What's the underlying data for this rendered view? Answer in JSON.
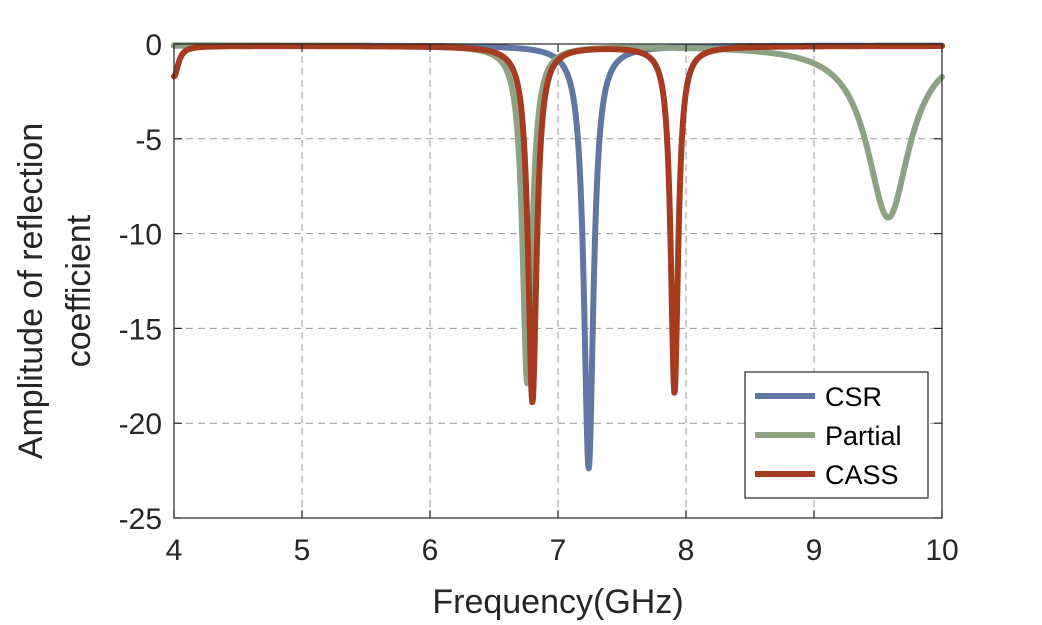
{
  "chart_data": {
    "type": "line",
    "title": "",
    "xlabel": "Frequency(GHz)",
    "ylabel_lines": [
      "Amplitude of reflection",
      "coefficient"
    ],
    "xlim": [
      4,
      10
    ],
    "ylim": [
      -25,
      0
    ],
    "xticks": [
      4,
      5,
      6,
      7,
      8,
      9,
      10
    ],
    "yticks": [
      0,
      -5,
      -10,
      -15,
      -20,
      -25
    ],
    "x_tick_labels": [
      "4",
      "5",
      "6",
      "7",
      "8",
      "9",
      "10"
    ],
    "y_tick_labels": [
      "0",
      "-5",
      "-10",
      "-15",
      "-20",
      "-25"
    ],
    "grid": true,
    "legend_position": "bottom-right",
    "series": [
      {
        "name": "CSR",
        "color": "#5E77A3",
        "baseline": -0.08,
        "resonances": [
          {
            "f0": 7.24,
            "depth": 22.3,
            "width": 0.045
          }
        ]
      },
      {
        "name": "Partial",
        "color": "#8DA283",
        "baseline": -0.05,
        "resonances": [
          {
            "f0": 6.76,
            "depth": 17.8,
            "width": 0.045
          },
          {
            "f0": 9.58,
            "depth": 9.1,
            "width": 0.2
          }
        ]
      },
      {
        "name": "CASS",
        "color": "#A63B1F",
        "baseline": -0.1,
        "resonances": [
          {
            "f0": 4.0,
            "depth": 1.6,
            "width": 0.04
          },
          {
            "f0": 6.8,
            "depth": 18.8,
            "width": 0.04
          },
          {
            "f0": 7.91,
            "depth": 18.3,
            "width": 0.035
          }
        ]
      }
    ]
  }
}
